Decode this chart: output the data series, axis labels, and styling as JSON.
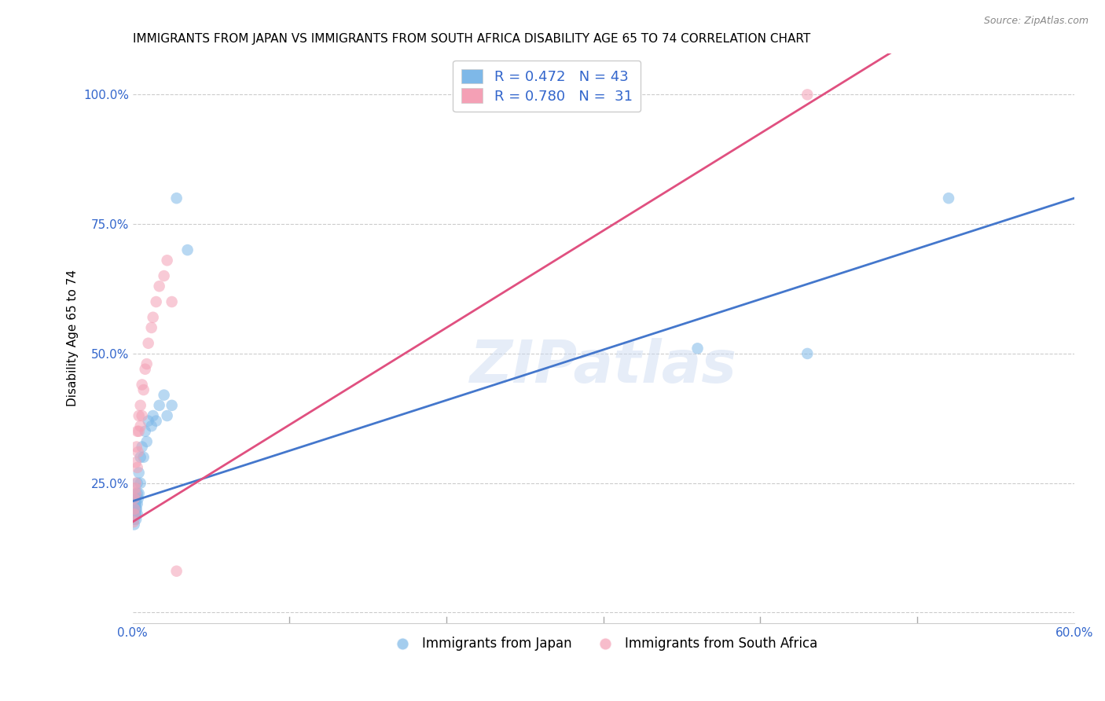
{
  "title": "IMMIGRANTS FROM JAPAN VS IMMIGRANTS FROM SOUTH AFRICA DISABILITY AGE 65 TO 74 CORRELATION CHART",
  "source": "Source: ZipAtlas.com",
  "ylabel": "Disability Age 65 to 74",
  "xlim": [
    0.0,
    0.6
  ],
  "ylim": [
    -0.02,
    1.08
  ],
  "japan_R": 0.472,
  "japan_N": 43,
  "sa_R": 0.78,
  "sa_N": 31,
  "japan_color": "#7eb8e8",
  "sa_color": "#f4a0b5",
  "japan_line_color": "#4477cc",
  "sa_line_color": "#e05080",
  "legend_label_japan": "Immigrants from Japan",
  "legend_label_sa": "Immigrants from South Africa",
  "watermark": "ZIPatlas",
  "japan_line_x0": 0.0,
  "japan_line_y0": 0.215,
  "japan_line_x1": 0.6,
  "japan_line_y1": 0.8,
  "sa_line_x0": 0.0,
  "sa_line_y0": 0.175,
  "sa_line_x1": 0.44,
  "sa_line_y1": 1.0,
  "japan_x": [
    0.0005,
    0.0007,
    0.0008,
    0.001,
    0.001,
    0.001,
    0.0012,
    0.0015,
    0.0015,
    0.0018,
    0.002,
    0.002,
    0.002,
    0.002,
    0.002,
    0.0022,
    0.0025,
    0.003,
    0.003,
    0.003,
    0.003,
    0.0035,
    0.004,
    0.004,
    0.005,
    0.005,
    0.006,
    0.007,
    0.008,
    0.009,
    0.01,
    0.012,
    0.013,
    0.015,
    0.017,
    0.02,
    0.022,
    0.025,
    0.028,
    0.035,
    0.36,
    0.43,
    0.52
  ],
  "japan_y": [
    0.2,
    0.21,
    0.19,
    0.17,
    0.18,
    0.22,
    0.2,
    0.22,
    0.19,
    0.21,
    0.22,
    0.21,
    0.19,
    0.23,
    0.2,
    0.18,
    0.2,
    0.25,
    0.21,
    0.23,
    0.19,
    0.22,
    0.27,
    0.23,
    0.3,
    0.25,
    0.32,
    0.3,
    0.35,
    0.33,
    0.37,
    0.36,
    0.38,
    0.37,
    0.4,
    0.42,
    0.38,
    0.4,
    0.8,
    0.7,
    0.51,
    0.5,
    0.8
  ],
  "sa_x": [
    0.0005,
    0.001,
    0.001,
    0.0012,
    0.0015,
    0.002,
    0.002,
    0.002,
    0.0025,
    0.003,
    0.003,
    0.0035,
    0.004,
    0.004,
    0.005,
    0.005,
    0.006,
    0.006,
    0.007,
    0.008,
    0.009,
    0.01,
    0.012,
    0.013,
    0.015,
    0.017,
    0.02,
    0.022,
    0.025,
    0.028,
    0.43
  ],
  "sa_y": [
    0.175,
    0.19,
    0.22,
    0.2,
    0.24,
    0.25,
    0.29,
    0.23,
    0.32,
    0.28,
    0.35,
    0.31,
    0.38,
    0.35,
    0.4,
    0.36,
    0.44,
    0.38,
    0.43,
    0.47,
    0.48,
    0.52,
    0.55,
    0.57,
    0.6,
    0.63,
    0.65,
    0.68,
    0.6,
    0.08,
    1.0
  ],
  "title_fontsize": 11,
  "axis_label_fontsize": 11,
  "tick_fontsize": 11,
  "legend_fontsize": 13,
  "marker_size": 110
}
